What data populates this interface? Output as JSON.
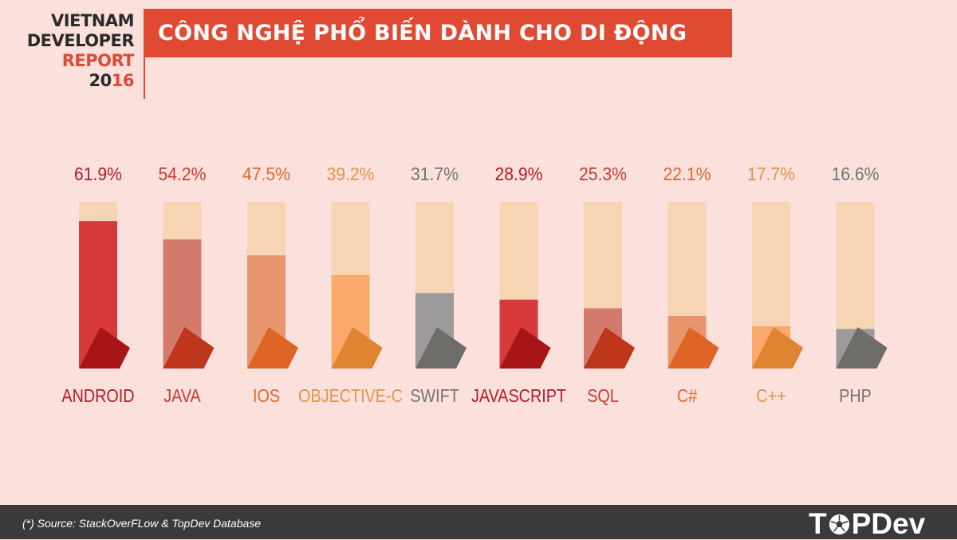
{
  "header": {
    "report_line1": "VIETNAM",
    "report_line2": "DEVELOPER",
    "report_line3": "REPORT",
    "report_year_a": "20",
    "report_year_b": "16",
    "title": "CÔNG NGHỆ PHỔ BIẾN DÀNH CHO DI ĐỘNG"
  },
  "chart_data": {
    "type": "bar",
    "categories": [
      "ANDROID",
      "JAVA",
      "IOS",
      "OBJECTIVE-C",
      "SWIFT",
      "JAVASCRIPT",
      "SQL",
      "C#",
      "C++",
      "PHP"
    ],
    "values": [
      61.9,
      54.2,
      47.5,
      39.2,
      31.7,
      28.9,
      25.3,
      22.1,
      17.7,
      16.6
    ],
    "value_labels": [
      "61.9%",
      "54.2%",
      "47.5%",
      "39.2%",
      "31.7%",
      "28.9%",
      "25.3%",
      "22.1%",
      "17.7%",
      "16.6%"
    ],
    "colors": {
      "fill": [
        "#d7393a",
        "#d37a6d",
        "#e6956c",
        "#fba86d",
        "#9d9a9b",
        "#d7393a",
        "#d37a6d",
        "#e6956c",
        "#fba86d",
        "#9d9a9b"
      ],
      "shadow": [
        "#a81518",
        "#be361c",
        "#de6525",
        "#df8430",
        "#6f6d6a",
        "#a81518",
        "#be361c",
        "#de6525",
        "#df8430",
        "#6f6d6a"
      ],
      "label": [
        "#b11d27",
        "#c53d32",
        "#de6a2e",
        "#e39346",
        "#767375",
        "#b11d27",
        "#c53d32",
        "#de6a2e",
        "#e39346",
        "#767375"
      ],
      "track": "#f7d4b4"
    },
    "grid": false,
    "legend": "none"
  },
  "footer": {
    "source": "(*) Source: StackOverFLow & TopDev Database",
    "logo_left": "T",
    "logo_right": "PDev"
  }
}
